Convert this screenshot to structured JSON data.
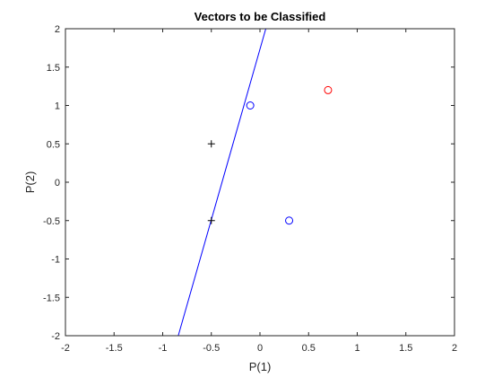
{
  "chart_data": {
    "type": "scatter",
    "title": "Vectors to be Classified",
    "xlabel": "P(1)",
    "ylabel": "P(2)",
    "xlim": [
      -2,
      2
    ],
    "ylim": [
      -2,
      2
    ],
    "xticks": [
      -2,
      -1.5,
      -1,
      -0.5,
      0,
      0.5,
      1,
      1.5,
      2
    ],
    "yticks": [
      -2,
      -1.5,
      -1,
      -0.5,
      0,
      0.5,
      1,
      1.5,
      2
    ],
    "xtick_labels": [
      "-2",
      "-1.5",
      "-1",
      "-0.5",
      "0",
      "0.5",
      "1",
      "1.5",
      "2"
    ],
    "ytick_labels": [
      "-2",
      "-1.5",
      "-1",
      "-0.5",
      "0",
      "0.5",
      "1",
      "1.5",
      "2"
    ],
    "grid": false,
    "series": [
      {
        "marker": "plus",
        "color": "#000000",
        "points": [
          [
            -0.5,
            0.5
          ],
          [
            -0.5,
            -0.5
          ]
        ]
      },
      {
        "marker": "circle",
        "color": "#0000ff",
        "points": [
          [
            -0.1,
            1.0
          ],
          [
            0.3,
            -0.5
          ]
        ]
      },
      {
        "marker": "circle",
        "color": "#ff0000",
        "points": [
          [
            0.7,
            1.2
          ]
        ]
      }
    ],
    "decision_line": {
      "color": "#0000ff",
      "points": [
        [
          -0.84,
          -2.0
        ],
        [
          0.06,
          2.0
        ]
      ]
    }
  }
}
